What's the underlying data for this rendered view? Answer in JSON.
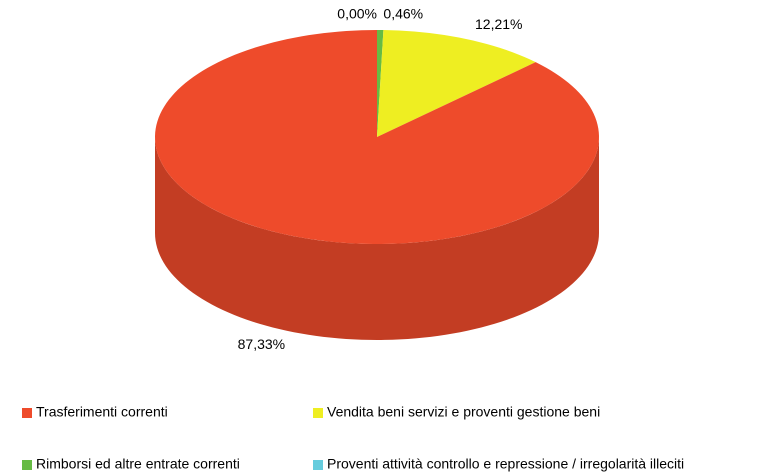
{
  "chart_data": {
    "type": "pie3d",
    "series": [
      {
        "name": "Trasferimenti correnti",
        "color": "#ee4b2b",
        "values": [
          87.33
        ],
        "value_labels": [
          "87,33%"
        ]
      },
      {
        "name": "Vendita beni servizi e proventi gestione beni",
        "color": "#eeee22",
        "values": [
          12.21
        ],
        "value_labels": [
          "12,21%"
        ]
      },
      {
        "name": "Rimborsi ed altre entrate correnti",
        "color": "#66bb44",
        "values": [
          0.46
        ],
        "value_labels": [
          "0,46%"
        ]
      },
      {
        "name": "Proventi attività controllo e repressione / irregolarità illeciti",
        "color": "#66ccdd",
        "values": [
          0.0
        ],
        "value_labels": [
          "0,00%"
        ]
      }
    ],
    "legend": "bottom"
  }
}
